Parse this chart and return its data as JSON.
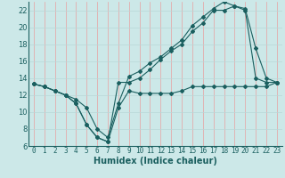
{
  "xlabel": "Humidex (Indice chaleur)",
  "background_color": "#cce8e8",
  "grid_color_x": "#e8a0a0",
  "grid_color_y": "#b8d8d8",
  "line_color": "#1a5f5f",
  "xlim": [
    -0.5,
    23.5
  ],
  "ylim": [
    6,
    23
  ],
  "yticks": [
    6,
    8,
    10,
    12,
    14,
    16,
    18,
    20,
    22
  ],
  "xticks": [
    0,
    1,
    2,
    3,
    4,
    5,
    6,
    7,
    8,
    9,
    10,
    11,
    12,
    13,
    14,
    15,
    16,
    17,
    18,
    19,
    20,
    21,
    22,
    23
  ],
  "series": [
    {
      "x": [
        0,
        1,
        2,
        3,
        4,
        5,
        6,
        7,
        8,
        9,
        10,
        11,
        12,
        13,
        14,
        15,
        16,
        17,
        18,
        19,
        20,
        21,
        22,
        23
      ],
      "y": [
        13.3,
        13.0,
        12.5,
        12.0,
        11.0,
        8.5,
        7.0,
        6.5,
        10.5,
        12.5,
        12.2,
        12.2,
        12.2,
        12.2,
        12.5,
        13.0,
        13.0,
        13.0,
        13.0,
        13.0,
        13.0,
        13.0,
        13.0,
        13.5
      ]
    },
    {
      "x": [
        0,
        1,
        2,
        3,
        4,
        5,
        6,
        7,
        8,
        9,
        10,
        11,
        12,
        13,
        14,
        15,
        16,
        17,
        18,
        19,
        20,
        21,
        22,
        23
      ],
      "y": [
        13.3,
        13.0,
        12.5,
        12.0,
        11.0,
        8.5,
        7.0,
        6.5,
        13.5,
        13.5,
        14.0,
        15.0,
        16.2,
        17.2,
        18.0,
        19.5,
        20.5,
        22.0,
        22.0,
        22.5,
        22.0,
        14.0,
        13.5,
        13.5
      ]
    },
    {
      "x": [
        0,
        1,
        2,
        3,
        4,
        5,
        6,
        7,
        8,
        9,
        10,
        11,
        12,
        13,
        14,
        15,
        16,
        17,
        18,
        19,
        20,
        21,
        22,
        23
      ],
      "y": [
        13.3,
        13.0,
        12.5,
        12.0,
        11.5,
        10.5,
        8.0,
        7.0,
        11.0,
        14.2,
        14.8,
        15.8,
        16.5,
        17.5,
        18.5,
        20.2,
        21.2,
        22.2,
        23.0,
        22.5,
        22.2,
        17.5,
        14.0,
        13.5
      ]
    }
  ]
}
